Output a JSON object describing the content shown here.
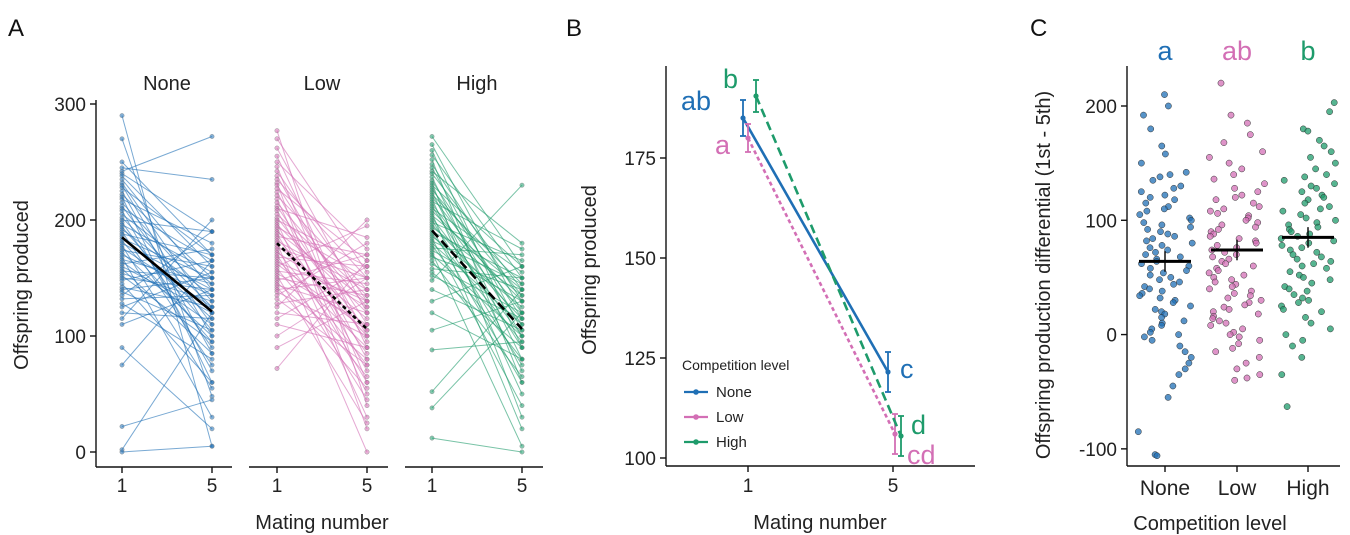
{
  "colors": {
    "None": "#1f6fb5",
    "Low": "#d36fb5",
    "High": "#1e9b6b",
    "mean": "#000000"
  },
  "chart_data": [
    {
      "panel": "A",
      "type": "line",
      "facets": [
        "None",
        "Low",
        "High"
      ],
      "x_ticks": [
        "1",
        "5"
      ],
      "xlabel": "Mating number",
      "ylabel": "Offspring produced",
      "ylim": [
        0,
        300
      ],
      "y_ticks": [
        0,
        100,
        200,
        300
      ],
      "mean_lines": [
        {
          "facet": "None",
          "style": "solid",
          "values": [
            185,
            121
          ]
        },
        {
          "facet": "Low",
          "style": "dotted",
          "values": [
            180,
            106
          ]
        },
        {
          "facet": "High",
          "style": "dashed",
          "values": [
            191,
            106
          ]
        }
      ],
      "individual_pairs": {
        "None": [
          [
            290,
            5
          ],
          [
            270,
            48
          ],
          [
            250,
            170
          ],
          [
            245,
            235
          ],
          [
            242,
            272
          ],
          [
            240,
            190
          ],
          [
            238,
            160
          ],
          [
            235,
            140
          ],
          [
            232,
            120
          ],
          [
            230,
            100
          ],
          [
            228,
            170
          ],
          [
            225,
            85
          ],
          [
            222,
            150
          ],
          [
            220,
            60
          ],
          [
            218,
            180
          ],
          [
            215,
            130
          ],
          [
            212,
            110
          ],
          [
            210,
            165
          ],
          [
            208,
            70
          ],
          [
            205,
            145
          ],
          [
            202,
            125
          ],
          [
            200,
            190
          ],
          [
            198,
            90
          ],
          [
            196,
            155
          ],
          [
            194,
            105
          ],
          [
            192,
            135
          ],
          [
            190,
            75
          ],
          [
            188,
            170
          ],
          [
            186,
            115
          ],
          [
            184,
            150
          ],
          [
            182,
            95
          ],
          [
            180,
            140
          ],
          [
            178,
            55
          ],
          [
            176,
            125
          ],
          [
            174,
            160
          ],
          [
            172,
            100
          ],
          [
            170,
            135
          ],
          [
            168,
            30
          ],
          [
            166,
            145
          ],
          [
            164,
            110
          ],
          [
            162,
            175
          ],
          [
            160,
            120
          ],
          [
            158,
            85
          ],
          [
            156,
            150
          ],
          [
            154,
            130
          ],
          [
            152,
            95
          ],
          [
            150,
            140
          ],
          [
            148,
            165
          ],
          [
            145,
            60
          ],
          [
            142,
            125
          ],
          [
            140,
            150
          ],
          [
            138,
            105
          ],
          [
            135,
            190
          ],
          [
            132,
            135
          ],
          [
            128,
            80
          ],
          [
            125,
            155
          ],
          [
            120,
            115
          ],
          [
            115,
            200
          ],
          [
            110,
            140
          ],
          [
            90,
            20
          ],
          [
            75,
            165
          ],
          [
            22,
            45
          ],
          [
            2,
            120
          ],
          [
            0,
            5
          ]
        ],
        "Low": [
          [
            277,
            40
          ],
          [
            270,
            155
          ],
          [
            262,
            120
          ],
          [
            255,
            90
          ],
          [
            250,
            175
          ],
          [
            246,
            60
          ],
          [
            242,
            130
          ],
          [
            238,
            100
          ],
          [
            235,
            150
          ],
          [
            232,
            20
          ],
          [
            230,
            110
          ],
          [
            227,
            165
          ],
          [
            224,
            80
          ],
          [
            221,
            140
          ],
          [
            218,
            50
          ],
          [
            215,
            125
          ],
          [
            212,
            95
          ],
          [
            210,
            185
          ],
          [
            208,
            70
          ],
          [
            205,
            135
          ],
          [
            202,
            105
          ],
          [
            200,
            160
          ],
          [
            198,
            30
          ],
          [
            196,
            120
          ],
          [
            194,
            150
          ],
          [
            192,
            85
          ],
          [
            190,
            130
          ],
          [
            188,
            60
          ],
          [
            186,
            170
          ],
          [
            184,
            100
          ],
          [
            182,
            140
          ],
          [
            180,
            0
          ],
          [
            178,
            115
          ],
          [
            176,
            150
          ],
          [
            174,
            75
          ],
          [
            172,
            125
          ],
          [
            170,
            45
          ],
          [
            168,
            160
          ],
          [
            166,
            90
          ],
          [
            164,
            130
          ],
          [
            162,
            105
          ],
          [
            160,
            195
          ],
          [
            158,
            65
          ],
          [
            156,
            145
          ],
          [
            154,
            110
          ],
          [
            152,
            25
          ],
          [
            150,
            135
          ],
          [
            148,
            170
          ],
          [
            146,
            80
          ],
          [
            144,
            120
          ],
          [
            142,
            55
          ],
          [
            140,
            150
          ],
          [
            138,
            100
          ],
          [
            135,
            180
          ],
          [
            132,
            75
          ],
          [
            128,
            140
          ],
          [
            125,
            200
          ],
          [
            120,
            110
          ],
          [
            115,
            160
          ],
          [
            110,
            90
          ],
          [
            100,
            150
          ],
          [
            90,
            130
          ],
          [
            72,
            165
          ]
        ],
        "High": [
          [
            272,
            160
          ],
          [
            265,
            120
          ],
          [
            260,
            90
          ],
          [
            256,
            150
          ],
          [
            252,
            60
          ],
          [
            248,
            130
          ],
          [
            245,
            105
          ],
          [
            242,
            180
          ],
          [
            240,
            140
          ],
          [
            237,
            80
          ],
          [
            234,
            115
          ],
          [
            232,
            30
          ],
          [
            230,
            160
          ],
          [
            228,
            100
          ],
          [
            226,
            135
          ],
          [
            224,
            70
          ],
          [
            222,
            145
          ],
          [
            220,
            120
          ],
          [
            218,
            50
          ],
          [
            216,
            175
          ],
          [
            214,
            110
          ],
          [
            212,
            90
          ],
          [
            210,
            155
          ],
          [
            208,
            130
          ],
          [
            206,
            20
          ],
          [
            204,
            140
          ],
          [
            202,
            100
          ],
          [
            200,
            75
          ],
          [
            198,
            165
          ],
          [
            196,
            115
          ],
          [
            194,
            135
          ],
          [
            192,
            60
          ],
          [
            190,
            150
          ],
          [
            188,
            95
          ],
          [
            186,
            125
          ],
          [
            184,
            40
          ],
          [
            182,
            145
          ],
          [
            180,
            110
          ],
          [
            178,
            80
          ],
          [
            176,
            170
          ],
          [
            174,
            130
          ],
          [
            172,
            5
          ],
          [
            170,
            100
          ],
          [
            168,
            140
          ],
          [
            165,
            65
          ],
          [
            162,
            120
          ],
          [
            158,
            150
          ],
          [
            155,
            90
          ],
          [
            152,
            115
          ],
          [
            148,
            230
          ],
          [
            140,
            105
          ],
          [
            130,
            160
          ],
          [
            120,
            80
          ],
          [
            105,
            130
          ],
          [
            88,
            95
          ],
          [
            52,
            140
          ],
          [
            38,
            120
          ],
          [
            12,
            0
          ]
        ]
      }
    },
    {
      "panel": "B",
      "type": "line",
      "xlabel": "Mating number",
      "ylabel": "Offspring produced",
      "x_ticks": [
        "1",
        "5"
      ],
      "y_ticks": [
        100,
        125,
        150,
        175
      ],
      "ylim": [
        98,
        198
      ],
      "legend_title": "Competition level",
      "legend_position": "bottom-left",
      "series": [
        {
          "name": "None",
          "style": "solid",
          "x": [
            "1",
            "5"
          ],
          "values": [
            185,
            121.5
          ],
          "error": [
            4.5,
            5
          ],
          "letters": [
            "ab",
            "c"
          ]
        },
        {
          "name": "Low",
          "style": "dotted",
          "x": [
            "1",
            "5"
          ],
          "values": [
            180,
            106
          ],
          "error": [
            3.5,
            5
          ],
          "letters": [
            "a",
            "cd"
          ]
        },
        {
          "name": "High",
          "style": "dashed",
          "x": [
            "1",
            "5"
          ],
          "values": [
            190.5,
            105.5
          ],
          "error": [
            4,
            5
          ],
          "letters": [
            "b",
            "d"
          ]
        }
      ]
    },
    {
      "panel": "C",
      "type": "scatter",
      "categories": [
        "None",
        "Low",
        "High"
      ],
      "xlabel": "Competition level",
      "ylabel": "Offspring production differential (1st - 5th)",
      "y_ticks": [
        -100,
        0,
        100,
        200
      ],
      "ylim": [
        -115,
        235
      ],
      "letters": [
        "a",
        "ab",
        "b"
      ],
      "means": [
        64,
        74,
        85
      ],
      "points": {
        "None": [
          210,
          200,
          192,
          180,
          165,
          158,
          150,
          142,
          140,
          138,
          135,
          130,
          128,
          125,
          122,
          120,
          118,
          115,
          112,
          110,
          108,
          105,
          102,
          100,
          98,
          96,
          94,
          92,
          90,
          88,
          86,
          84,
          82,
          80,
          78,
          76,
          74,
          72,
          70,
          68,
          66,
          64,
          62,
          60,
          58,
          56,
          54,
          52,
          50,
          48,
          46,
          44,
          42,
          40,
          38,
          36,
          34,
          32,
          30,
          28,
          25,
          22,
          20,
          18,
          15,
          12,
          10,
          8,
          5,
          2,
          0,
          -2,
          -5,
          -10,
          -15,
          -20,
          -25,
          -30,
          -35,
          -45,
          -55,
          -85,
          -105,
          -106
        ],
        "Low": [
          220,
          192,
          185,
          175,
          168,
          160,
          155,
          150,
          145,
          140,
          136,
          132,
          128,
          125,
          122,
          120,
          118,
          115,
          112,
          110,
          108,
          106,
          104,
          102,
          100,
          98,
          96,
          94,
          92,
          90,
          88,
          86,
          84,
          82,
          80,
          78,
          76,
          74,
          72,
          70,
          68,
          66,
          64,
          62,
          60,
          58,
          56,
          54,
          52,
          50,
          48,
          46,
          44,
          42,
          40,
          38,
          36,
          34,
          32,
          30,
          28,
          26,
          24,
          22,
          20,
          18,
          16,
          14,
          12,
          10,
          8,
          5,
          2,
          0,
          -2,
          -5,
          -8,
          -12,
          -15,
          -20,
          -25,
          -30,
          -35,
          -38,
          -40
        ],
        "High": [
          203,
          195,
          180,
          178,
          170,
          165,
          160,
          155,
          150,
          145,
          140,
          138,
          135,
          132,
          130,
          128,
          125,
          122,
          120,
          118,
          115,
          112,
          110,
          108,
          105,
          102,
          100,
          98,
          96,
          94,
          92,
          90,
          88,
          86,
          84,
          82,
          80,
          78,
          76,
          74,
          72,
          70,
          68,
          66,
          64,
          62,
          60,
          58,
          55,
          52,
          50,
          48,
          45,
          42,
          40,
          38,
          35,
          32,
          30,
          28,
          25,
          22,
          20,
          15,
          10,
          5,
          0,
          -5,
          -10,
          -20,
          -35,
          -63
        ]
      }
    }
  ]
}
